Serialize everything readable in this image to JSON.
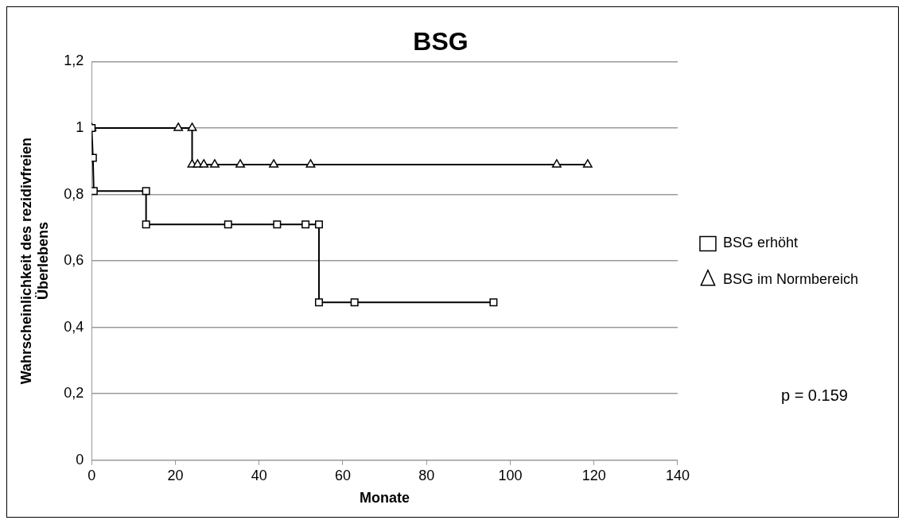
{
  "chart_data": {
    "type": "line",
    "title": "BSG",
    "xlabel": "Monate",
    "ylabel": "Wahrscheinlichkeit des rezidivfreien Überlebens",
    "xlim": [
      0,
      140
    ],
    "xticks": [
      0,
      20,
      40,
      60,
      80,
      100,
      120,
      140
    ],
    "ylim": [
      0,
      1.2
    ],
    "yticks": [
      0,
      {
        "value": 0.2,
        "label": "0,2"
      },
      {
        "value": 0.4,
        "label": "0,4"
      },
      {
        "value": 0.6,
        "label": "0,6"
      },
      {
        "value": 0.8,
        "label": "0,8"
      },
      1,
      {
        "value": 1.2,
        "label": "1,2"
      }
    ],
    "grid": "y",
    "legend": "right",
    "line_style": "solid",
    "annotations": [
      "p = 0.159"
    ],
    "series": [
      {
        "name": "BSG erhöht",
        "color": "#000000",
        "marker": "square",
        "x": [
          0,
          0.3,
          0.5,
          13,
          13,
          32.6,
          44.3,
          51.1,
          54.3,
          54.3,
          62.8,
          96
        ],
        "values": [
          1,
          0.91,
          0.81,
          0.81,
          0.71,
          0.71,
          0.71,
          0.71,
          0.71,
          0.475,
          0.475,
          0.475
        ]
      },
      {
        "name": "BSG im Normbereich",
        "color": "#000000",
        "marker": "triangle",
        "x": [
          0,
          20.7,
          24,
          24,
          25.3,
          26.8,
          29.4,
          35.5,
          43.5,
          52.3,
          111.1,
          118.5
        ],
        "values": [
          1,
          1,
          1,
          0.89,
          0.89,
          0.89,
          0.89,
          0.89,
          0.89,
          0.89,
          0.89,
          0.89
        ]
      }
    ]
  }
}
